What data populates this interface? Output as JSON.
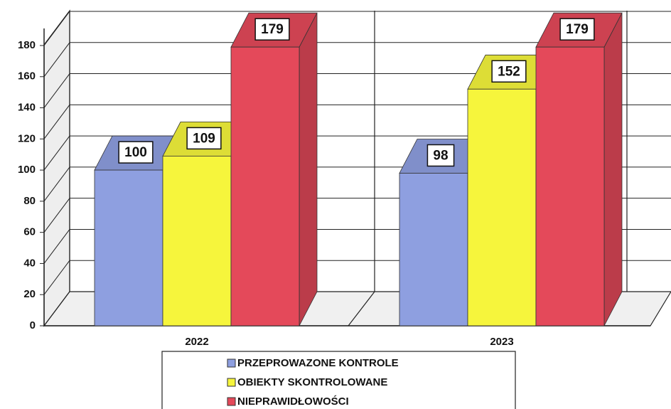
{
  "chart_data": {
    "type": "bar",
    "categories": [
      "2022",
      "2023"
    ],
    "series": [
      {
        "name": "PRZEPROWAZONE KONTROLE",
        "color": "#8e9fe0",
        "values": [
          100,
          98
        ]
      },
      {
        "name": "OBIEKTY SKONTROLOWANE",
        "color": "#f6f53c",
        "values": [
          109,
          152
        ]
      },
      {
        "name": "NIEPRAWIDŁOWOŚCI",
        "color": "#e4495a",
        "values": [
          179,
          179
        ]
      }
    ],
    "ylim": [
      0,
      180
    ],
    "yticks": [
      0,
      20,
      40,
      60,
      80,
      100,
      120,
      140,
      160,
      180
    ],
    "grid": true
  }
}
